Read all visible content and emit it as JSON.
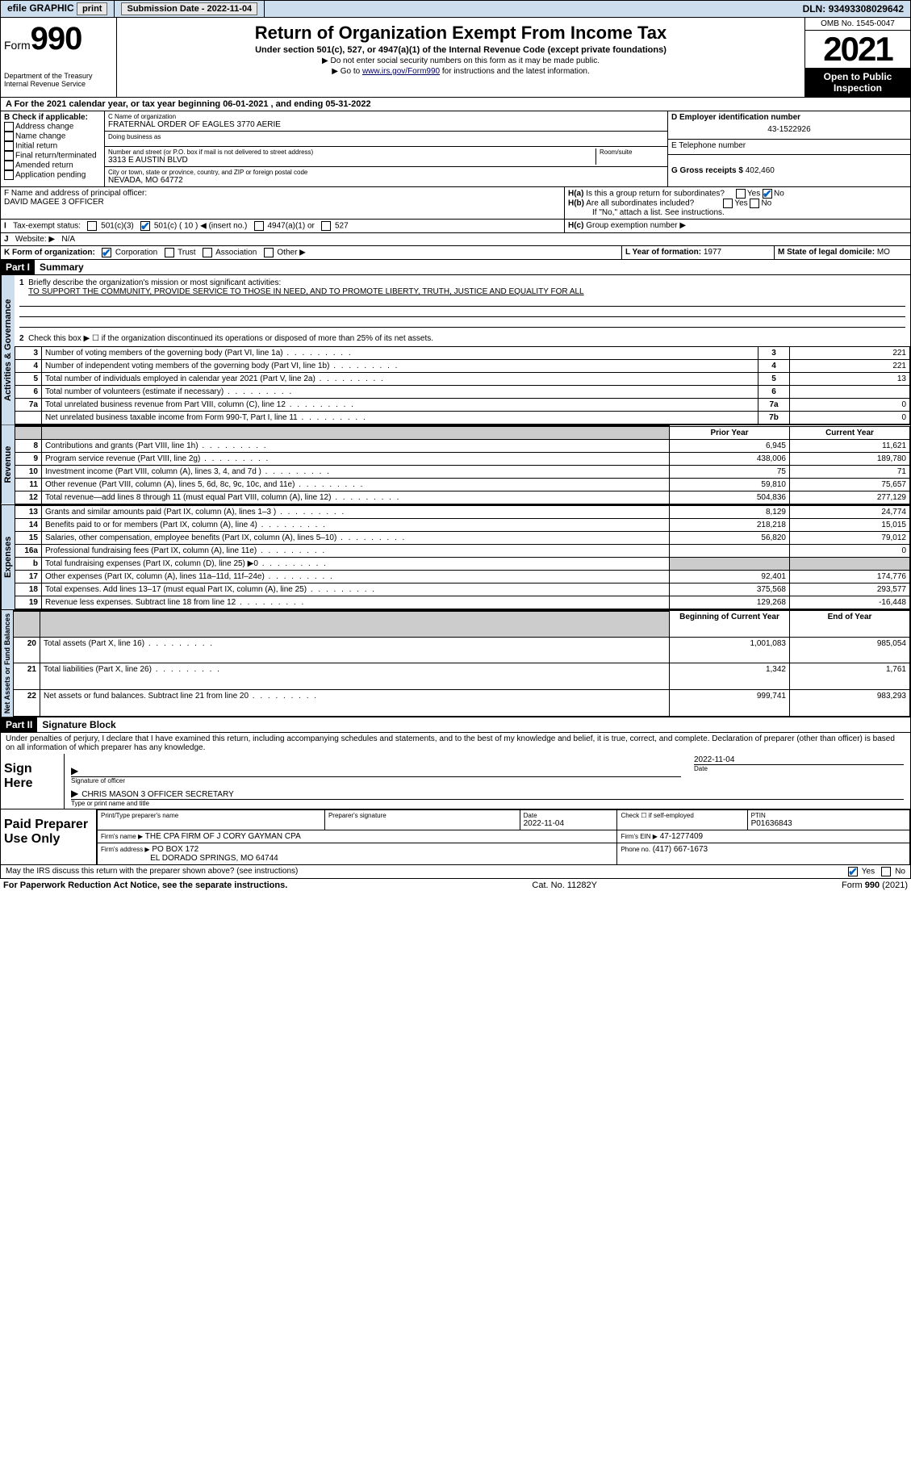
{
  "topbar": {
    "efile": "efile GRAPHIC",
    "print": "print",
    "submission_label": "Submission Date - ",
    "submission_date": "2022-11-04",
    "dln_label": "DLN: ",
    "dln": "93493308029642"
  },
  "header": {
    "form_prefix": "Form",
    "form_num": "990",
    "dept": "Department of the Treasury\nInternal Revenue Service",
    "title": "Return of Organization Exempt From Income Tax",
    "subtitle": "Under section 501(c), 527, or 4947(a)(1) of the Internal Revenue Code (except private foundations)",
    "note1": "▶ Do not enter social security numbers on this form as it may be made public.",
    "note2_pre": "▶ Go to ",
    "note2_link": "www.irs.gov/Form990",
    "note2_post": " for instructions and the latest information.",
    "omb": "OMB No. 1545-0047",
    "year": "2021",
    "inspection": "Open to Public Inspection"
  },
  "sectionA": {
    "line": "A For the 2021 calendar year, or tax year beginning 06-01-2021   , and ending 05-31-2022",
    "B_label": "B Check if applicable:",
    "B_opts": [
      "Address change",
      "Name change",
      "Initial return",
      "Final return/terminated",
      "Amended return",
      "Application pending"
    ],
    "C_name_label": "C Name of organization",
    "C_name": "FRATERNAL ORDER OF EAGLES 3770 AERIE",
    "dba_label": "Doing business as",
    "dba": "",
    "addr_label": "Number and street (or P.O. box if mail is not delivered to street address)",
    "room_label": "Room/suite",
    "addr": "3313 E AUSTIN BLVD",
    "city_label": "City or town, state or province, country, and ZIP or foreign postal code",
    "city": "NEVADA, MO  64772",
    "D_label": "D Employer identification number",
    "D_val": "43-1522926",
    "E_label": "E Telephone number",
    "E_val": "",
    "G_label": "G Gross receipts $",
    "G_val": "402,460",
    "F_label": "F  Name and address of principal officer:",
    "F_val": "DAVID MAGEE 3 OFFICER",
    "Ha_label": "H(a)  Is this a group return for subordinates?",
    "Ha_yes": "Yes",
    "Ha_no": "No",
    "Hb_label": "H(b)  Are all subordinates included?",
    "Hb_yes": "Yes",
    "Hb_no": "No",
    "Hb_note": "If \"No,\" attach a list. See instructions.",
    "Hc_label": "H(c)  Group exemption number ▶",
    "I_label": "I    Tax-exempt status:",
    "I_501c3": "501(c)(3)",
    "I_501c": "501(c) ( 10 ) ◀ (insert no.)",
    "I_4947": "4947(a)(1) or",
    "I_527": "527",
    "J_label": "J    Website: ▶",
    "J_val": "N/A",
    "K_label": "K Form of organization:",
    "K_corp": "Corporation",
    "K_trust": "Trust",
    "K_assoc": "Association",
    "K_other": "Other ▶",
    "L_label": "L Year of formation:",
    "L_val": "1977",
    "M_label": "M State of legal domicile:",
    "M_val": "MO"
  },
  "part1": {
    "label": "Part I",
    "title": "Summary",
    "q1_label": "Briefly describe the organization's mission or most significant activities:",
    "q1_val": "TO SUPPORT THE COMMUNITY, PROVIDE SERVICE TO THOSE IN NEED, AND TO PROMOTE LIBERTY, TRUTH, JUSTICE AND EQUALITY FOR ALL",
    "q2": "Check this box ▶ ☐  if the organization discontinued its operations or disposed of more than 25% of its net assets.",
    "vtab1": "Activities & Governance",
    "vtab2": "Revenue",
    "vtab3": "Expenses",
    "vtab4": "Net Assets or Fund Balances",
    "rows_gov": [
      {
        "n": "3",
        "t": "Number of voting members of the governing body (Part VI, line 1a)",
        "box": "3",
        "v": "221"
      },
      {
        "n": "4",
        "t": "Number of independent voting members of the governing body (Part VI, line 1b)",
        "box": "4",
        "v": "221"
      },
      {
        "n": "5",
        "t": "Total number of individuals employed in calendar year 2021 (Part V, line 2a)",
        "box": "5",
        "v": "13"
      },
      {
        "n": "6",
        "t": "Total number of volunteers (estimate if necessary)",
        "box": "6",
        "v": ""
      },
      {
        "n": "7a",
        "t": "Total unrelated business revenue from Part VIII, column (C), line 12",
        "box": "7a",
        "v": "0"
      },
      {
        "n": "",
        "t": "Net unrelated business taxable income from Form 990-T, Part I, line 11",
        "box": "7b",
        "v": "0"
      }
    ],
    "col_prior": "Prior Year",
    "col_current": "Current Year",
    "rows_rev": [
      {
        "n": "8",
        "t": "Contributions and grants (Part VIII, line 1h)",
        "p": "6,945",
        "c": "11,621"
      },
      {
        "n": "9",
        "t": "Program service revenue (Part VIII, line 2g)",
        "p": "438,006",
        "c": "189,780"
      },
      {
        "n": "10",
        "t": "Investment income (Part VIII, column (A), lines 3, 4, and 7d )",
        "p": "75",
        "c": "71"
      },
      {
        "n": "11",
        "t": "Other revenue (Part VIII, column (A), lines 5, 6d, 8c, 9c, 10c, and 11e)",
        "p": "59,810",
        "c": "75,657"
      },
      {
        "n": "12",
        "t": "Total revenue—add lines 8 through 11 (must equal Part VIII, column (A), line 12)",
        "p": "504,836",
        "c": "277,129"
      }
    ],
    "rows_exp": [
      {
        "n": "13",
        "t": "Grants and similar amounts paid (Part IX, column (A), lines 1–3 )",
        "p": "8,129",
        "c": "24,774"
      },
      {
        "n": "14",
        "t": "Benefits paid to or for members (Part IX, column (A), line 4)",
        "p": "218,218",
        "c": "15,015"
      },
      {
        "n": "15",
        "t": "Salaries, other compensation, employee benefits (Part IX, column (A), lines 5–10)",
        "p": "56,820",
        "c": "79,012"
      },
      {
        "n": "16a",
        "t": "Professional fundraising fees (Part IX, column (A), line 11e)",
        "p": "",
        "c": "0"
      },
      {
        "n": "b",
        "t": "Total fundraising expenses (Part IX, column (D), line 25) ▶0",
        "p": "grey",
        "c": "grey"
      },
      {
        "n": "17",
        "t": "Other expenses (Part IX, column (A), lines 11a–11d, 11f–24e)",
        "p": "92,401",
        "c": "174,776"
      },
      {
        "n": "18",
        "t": "Total expenses. Add lines 13–17 (must equal Part IX, column (A), line 25)",
        "p": "375,568",
        "c": "293,577"
      },
      {
        "n": "19",
        "t": "Revenue less expenses. Subtract line 18 from line 12",
        "p": "129,268",
        "c": "-16,448"
      }
    ],
    "col_begin": "Beginning of Current Year",
    "col_end": "End of Year",
    "rows_net": [
      {
        "n": "20",
        "t": "Total assets (Part X, line 16)",
        "p": "1,001,083",
        "c": "985,054"
      },
      {
        "n": "21",
        "t": "Total liabilities (Part X, line 26)",
        "p": "1,342",
        "c": "1,761"
      },
      {
        "n": "22",
        "t": "Net assets or fund balances. Subtract line 21 from line 20",
        "p": "999,741",
        "c": "983,293"
      }
    ]
  },
  "part2": {
    "label": "Part II",
    "title": "Signature Block",
    "decl": "Under penalties of perjury, I declare that I have examined this return, including accompanying schedules and statements, and to the best of my knowledge and belief, it is true, correct, and complete. Declaration of preparer (other than officer) is based on all information of which preparer has any knowledge.",
    "sign_here": "Sign Here",
    "sig_officer": "Signature of officer",
    "sig_date": "Date",
    "sig_date_val": "2022-11-04",
    "officer_name": "CHRIS MASON 3 OFFICER  SECRETARY",
    "officer_name_label": "Type or print name and title",
    "paid": "Paid Preparer Use Only",
    "prep_name_label": "Print/Type preparer's name",
    "prep_sig_label": "Preparer's signature",
    "date_label": "Date",
    "date_val": "2022-11-04",
    "check_label": "Check ☐ if self-employed",
    "ptin_label": "PTIN",
    "ptin": "P01636843",
    "firm_name_label": "Firm's name   ▶",
    "firm_name": "THE CPA FIRM OF J CORY GAYMAN CPA",
    "firm_ein_label": "Firm's EIN ▶",
    "firm_ein": "47-1277409",
    "firm_addr_label": "Firm's address ▶",
    "firm_addr1": "PO BOX 172",
    "firm_addr2": "EL DORADO SPRINGS, MO  64744",
    "phone_label": "Phone no.",
    "phone": "(417) 667-1673",
    "discuss": "May the IRS discuss this return with the preparer shown above? (see instructions)",
    "yes": "Yes",
    "no": "No"
  },
  "footer": {
    "pra": "For Paperwork Reduction Act Notice, see the separate instructions.",
    "cat": "Cat. No. 11282Y",
    "form": "Form 990 (2021)"
  }
}
